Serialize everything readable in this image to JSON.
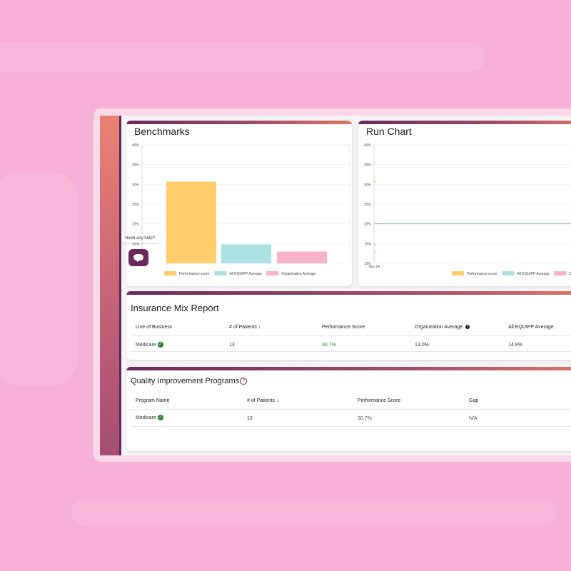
{
  "benchmarks": {
    "title": "Benchmarks",
    "help_text": "Need any help?"
  },
  "run_chart": {
    "title": "Run Chart",
    "x_tick": "Sep 24"
  },
  "legend": {
    "performance": "Performance score",
    "equipp": "All EQUIPP Average",
    "organization": "Organization Average"
  },
  "colors": {
    "performance": "#ffcd6b",
    "equipp": "#abe1e1",
    "organization": "#f9b3c7",
    "accent": "#6b2a5e",
    "positive": "#2e7d32",
    "run_line": "#7fb07f"
  },
  "chart_data": [
    {
      "type": "bar",
      "title": "Benchmarks",
      "categories": [
        "Performance score",
        "All EQUIPP Average",
        "Organization Average"
      ],
      "values": [
        30.7,
        14.8,
        13.0
      ],
      "ylim": [
        10,
        40
      ],
      "yticks": [
        "40%",
        "35%",
        "30%",
        "25%",
        "20%",
        "15%",
        "10%"
      ],
      "grid": true,
      "legend": "bottom"
    },
    {
      "type": "line",
      "title": "Run Chart",
      "x": [
        "Sep 24"
      ],
      "series": [
        {
          "name": "Performance score",
          "values": [
            30.7
          ]
        },
        {
          "name": "All EQUIPP Average",
          "values": [
            14.8
          ]
        },
        {
          "name": "Organization Average",
          "values": [
            13.0
          ]
        }
      ],
      "reference_line": 20,
      "ylim": [
        10,
        40
      ],
      "yticks": [
        "40%",
        "35%",
        "30%",
        "25%",
        "20%",
        "15%",
        "10%"
      ],
      "grid": true,
      "legend": "bottom"
    }
  ],
  "insurance": {
    "title": "Insurance Mix Report",
    "headers": [
      "Line of Business",
      "# of Patients",
      "Performance Score",
      "Organization Average",
      "All EQUIPP Average"
    ],
    "sort_icon": "↓",
    "info_icon": "i",
    "rows": [
      {
        "line": "Medicare",
        "patients": "13",
        "performance": "30.7%",
        "org_avg": "13.0%",
        "equipp_avg": "14.8%"
      }
    ]
  },
  "quality": {
    "title": "Quality Improvement Programs",
    "help_icon": "?",
    "headers": [
      "Program Name",
      "# of Patients",
      "Performance Score",
      "Gap"
    ],
    "sort_icon": "↓",
    "rows": [
      {
        "program": "Medicare",
        "patients": "13",
        "performance": "30.7%",
        "gap": "N/A"
      }
    ]
  },
  "check_icon": "✓"
}
